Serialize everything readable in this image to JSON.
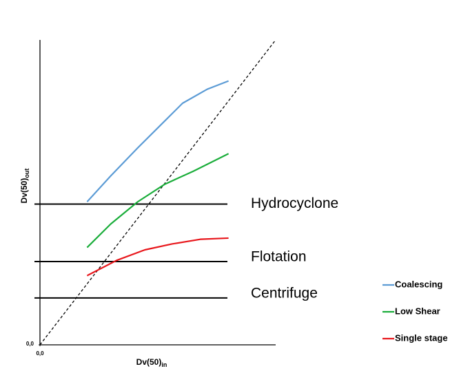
{
  "chart_data": {
    "type": "line",
    "x_label": {
      "text": "Dv(50)",
      "subscript": "in"
    },
    "y_label": {
      "text": "Dv(50)",
      "subscript": "out"
    },
    "xlim": [
      0,
      10
    ],
    "ylim": [
      0,
      13
    ],
    "xticks": [
      {
        "value": 0,
        "label": "0,0"
      }
    ],
    "yticks": [
      {
        "value": 0,
        "label": "0,0"
      }
    ],
    "diagonal": {
      "x": [
        0,
        10
      ],
      "values": [
        0,
        13
      ],
      "color": "#000000"
    },
    "levels": [
      {
        "label": "Hydrocyclone",
        "value": 6.0
      },
      {
        "label": "Flotation",
        "value": 3.55
      },
      {
        "label": "Centrifuge",
        "value": 2.0
      }
    ],
    "series": [
      {
        "name": "Coalescing",
        "color": "#5b9bd5",
        "x": [
          2.0,
          3.0,
          4.15,
          5.3,
          6.05,
          7.1,
          8.0
        ],
        "values": [
          6.1,
          7.2,
          8.4,
          9.55,
          10.3,
          10.9,
          11.25
        ]
      },
      {
        "name": "Low Shear",
        "color": "#1aad3a",
        "x": [
          2.0,
          3.0,
          4.15,
          5.3,
          6.5,
          8.0
        ],
        "values": [
          4.15,
          5.15,
          6.1,
          6.85,
          7.4,
          8.15
        ]
      },
      {
        "name": "Single stage",
        "color": "#e8161b",
        "x": [
          2.0,
          3.25,
          4.45,
          5.6,
          6.8,
          8.0
        ],
        "values": [
          2.95,
          3.6,
          4.05,
          4.3,
          4.5,
          4.55
        ]
      }
    ],
    "legend": "bottom-right"
  }
}
